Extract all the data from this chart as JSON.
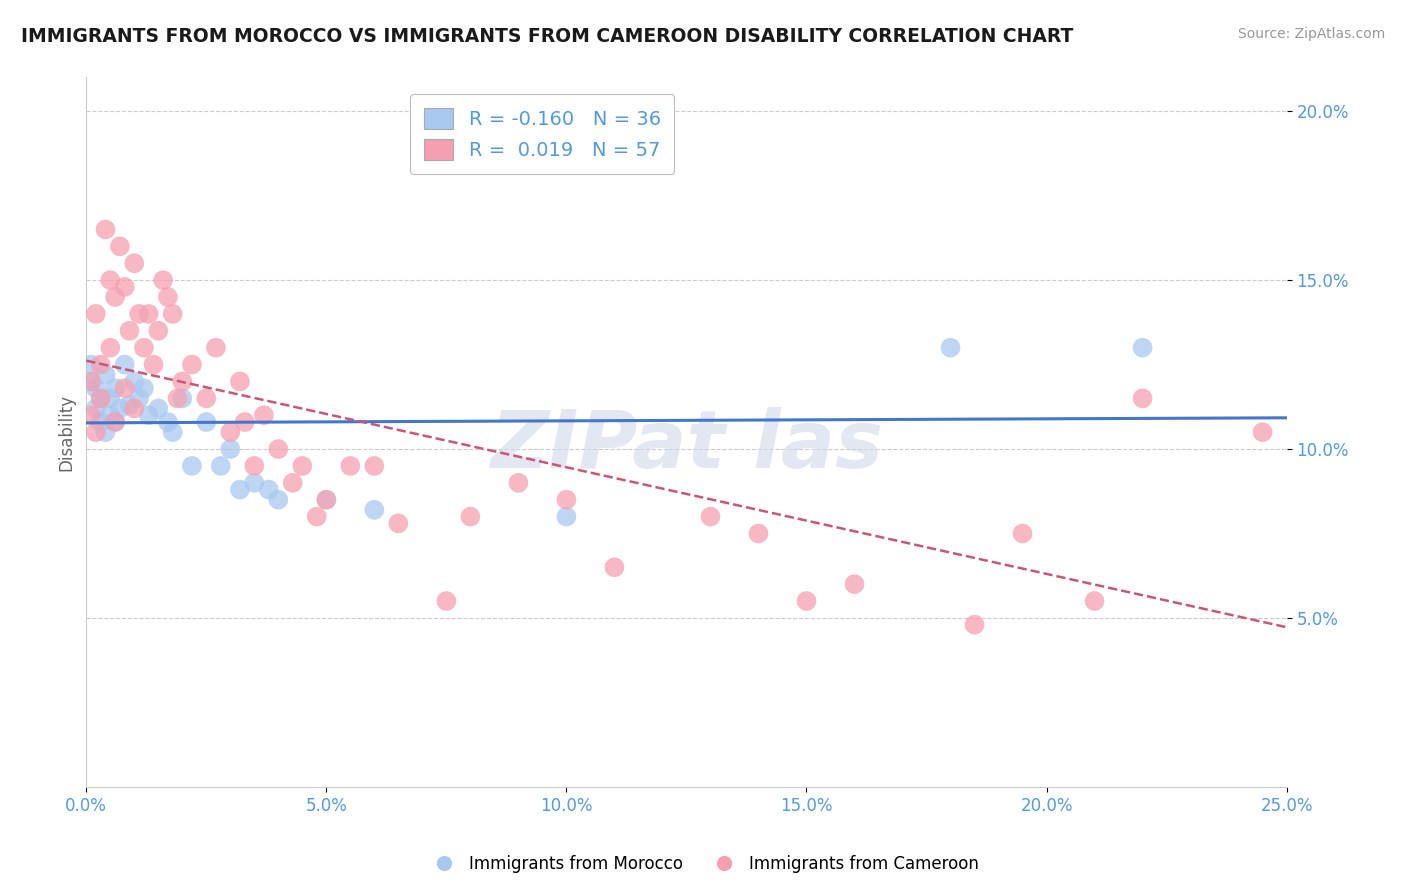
{
  "title": "IMMIGRANTS FROM MOROCCO VS IMMIGRANTS FROM CAMEROON DISABILITY CORRELATION CHART",
  "source": "Source: ZipAtlas.com",
  "ylabel": "Disability",
  "xlim": [
    0.0,
    0.25
  ],
  "ylim": [
    0.0,
    0.21
  ],
  "xtick_labels": [
    "0.0%",
    "5.0%",
    "10.0%",
    "15.0%",
    "20.0%",
    "25.0%"
  ],
  "xtick_vals": [
    0.0,
    0.05,
    0.1,
    0.15,
    0.2,
    0.25
  ],
  "ytick_labels": [
    "5.0%",
    "10.0%",
    "15.0%",
    "20.0%"
  ],
  "ytick_vals": [
    0.05,
    0.1,
    0.15,
    0.2
  ],
  "morocco_color": "#a8c8f0",
  "cameroon_color": "#f5a0b0",
  "morocco_line_color": "#4477cc",
  "cameroon_line_color": "#cc5577",
  "morocco_R": -0.16,
  "morocco_N": 36,
  "cameroon_R": 0.019,
  "cameroon_N": 57,
  "legend_label_1": "Immigrants from Morocco",
  "legend_label_2": "Immigrants from Cameroon",
  "tick_color": "#5599dd",
  "morocco_scatter_x": [
    0.001,
    0.001,
    0.002,
    0.002,
    0.003,
    0.003,
    0.004,
    0.004,
    0.005,
    0.005,
    0.006,
    0.006,
    0.007,
    0.008,
    0.009,
    0.01,
    0.011,
    0.012,
    0.013,
    0.015,
    0.017,
    0.018,
    0.02,
    0.022,
    0.025,
    0.028,
    0.03,
    0.032,
    0.035,
    0.038,
    0.04,
    0.05,
    0.06,
    0.1,
    0.18,
    0.22
  ],
  "morocco_scatter_y": [
    0.12,
    0.125,
    0.118,
    0.112,
    0.115,
    0.108,
    0.122,
    0.105,
    0.115,
    0.11,
    0.108,
    0.118,
    0.112,
    0.125,
    0.113,
    0.12,
    0.115,
    0.118,
    0.11,
    0.112,
    0.108,
    0.105,
    0.115,
    0.095,
    0.108,
    0.095,
    0.1,
    0.088,
    0.09,
    0.088,
    0.085,
    0.085,
    0.082,
    0.08,
    0.13,
    0.13
  ],
  "cameroon_scatter_x": [
    0.001,
    0.001,
    0.002,
    0.002,
    0.003,
    0.003,
    0.004,
    0.005,
    0.005,
    0.006,
    0.006,
    0.007,
    0.008,
    0.008,
    0.009,
    0.01,
    0.01,
    0.011,
    0.012,
    0.013,
    0.014,
    0.015,
    0.016,
    0.017,
    0.018,
    0.019,
    0.02,
    0.022,
    0.025,
    0.027,
    0.03,
    0.032,
    0.033,
    0.035,
    0.037,
    0.04,
    0.043,
    0.045,
    0.048,
    0.05,
    0.055,
    0.06,
    0.065,
    0.075,
    0.08,
    0.09,
    0.1,
    0.11,
    0.13,
    0.14,
    0.15,
    0.16,
    0.185,
    0.195,
    0.21,
    0.22,
    0.245
  ],
  "cameroon_scatter_y": [
    0.12,
    0.11,
    0.14,
    0.105,
    0.125,
    0.115,
    0.165,
    0.15,
    0.13,
    0.145,
    0.108,
    0.16,
    0.148,
    0.118,
    0.135,
    0.155,
    0.112,
    0.14,
    0.13,
    0.14,
    0.125,
    0.135,
    0.15,
    0.145,
    0.14,
    0.115,
    0.12,
    0.125,
    0.115,
    0.13,
    0.105,
    0.12,
    0.108,
    0.095,
    0.11,
    0.1,
    0.09,
    0.095,
    0.08,
    0.085,
    0.095,
    0.095,
    0.078,
    0.055,
    0.08,
    0.09,
    0.085,
    0.065,
    0.08,
    0.075,
    0.055,
    0.06,
    0.048,
    0.075,
    0.055,
    0.115,
    0.105
  ]
}
